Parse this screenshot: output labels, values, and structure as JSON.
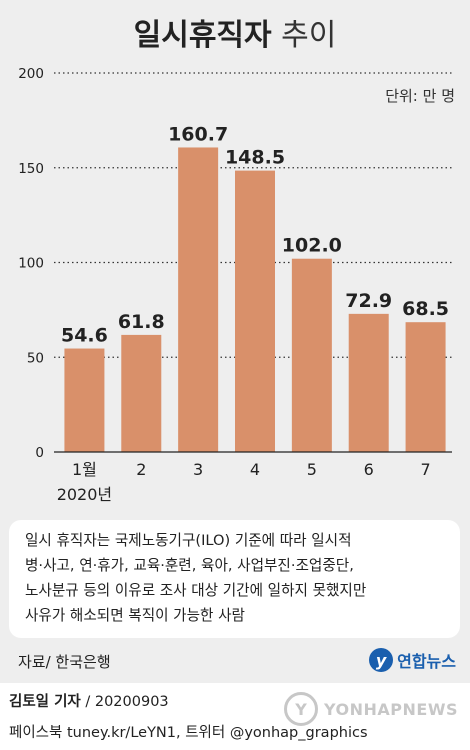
{
  "title": {
    "bold": "일시휴직자",
    "light": "추이"
  },
  "unit_label": "단위: 만 명",
  "chart_data": {
    "type": "bar",
    "categories": [
      "1월",
      "2",
      "3",
      "4",
      "5",
      "6",
      "7"
    ],
    "year_label": "2020년",
    "values": [
      54.6,
      61.8,
      160.7,
      148.5,
      102.0,
      72.9,
      68.5
    ],
    "value_labels": [
      "54.6",
      "61.8",
      "160.7",
      "148.5",
      "102.0",
      "72.9",
      "68.5"
    ],
    "yticks": [
      0,
      50,
      100,
      150,
      200
    ],
    "ylim": [
      0,
      200
    ],
    "grid": "dotted horizontal",
    "bar_color": "#d9906a"
  },
  "note_lines": [
    "일시 휴직자는 국제노동기구(ILO) 기준에 따라 일시적",
    "병·사고, 연·휴가, 교육·훈련, 육아, 사업부진·조업중단,",
    "노사분규 등의 이유로 조사 대상 기간에 일하지 못했지만",
    "사유가 해소되면 복직이 가능한 사람"
  ],
  "source": "자료/  한국은행",
  "logo": {
    "mark": "y",
    "text": "연합뉴스"
  },
  "byline": {
    "reporter": "김토일 기자",
    "date": " / 20200903"
  },
  "social": "페이스북 tuney.kr/LeYN1, 트위터 @yonhap_graphics",
  "watermark": {
    "mark": "Y",
    "text": "YONHAPNEWS"
  }
}
